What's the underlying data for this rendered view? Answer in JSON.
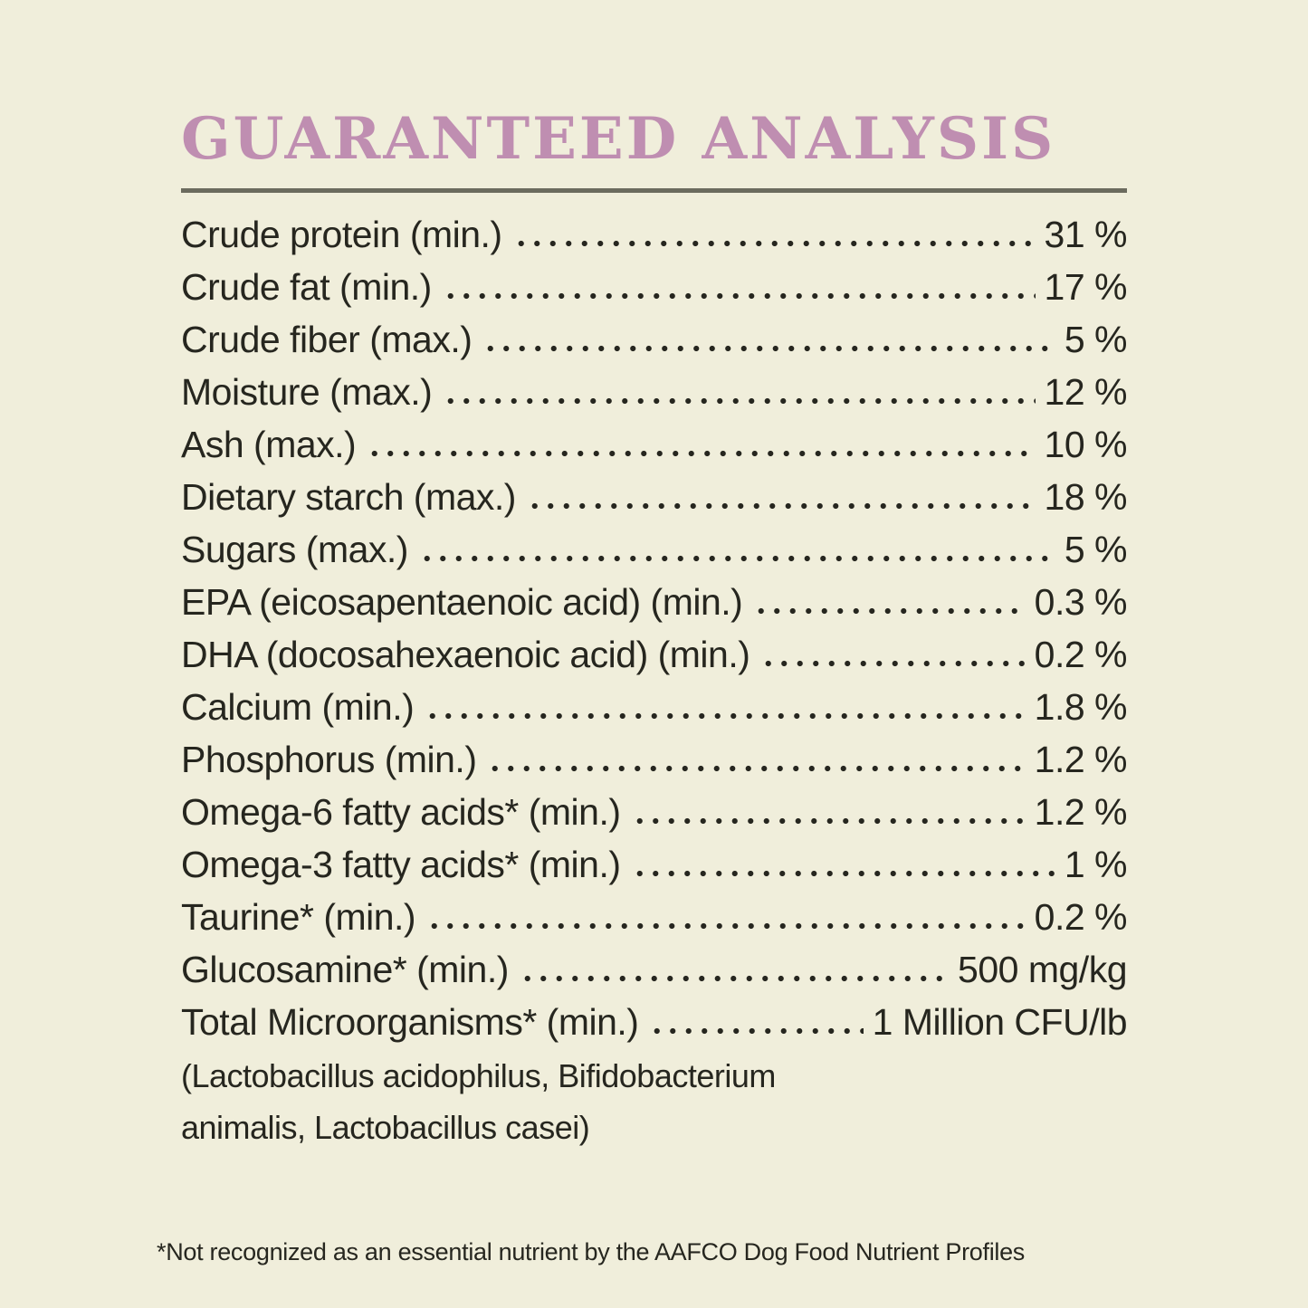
{
  "title": "GUARANTEED ANALYSIS",
  "colors": {
    "background": "#f0eedb",
    "title_pink": "#bf8eb1",
    "rule_gray": "#6b6b5e",
    "text": "#26261f"
  },
  "rows": [
    {
      "label": "Crude protein (min.)",
      "value": "31 %"
    },
    {
      "label": "Crude fat (min.)",
      "value": "17 %"
    },
    {
      "label": "Crude fiber (max.)",
      "value": "5 %"
    },
    {
      "label": "Moisture (max.)",
      "value": "12 %"
    },
    {
      "label": "Ash (max.)",
      "value": "10 %"
    },
    {
      "label": "Dietary starch (max.)",
      "value": "18 %"
    },
    {
      "label": "Sugars (max.)",
      "value": "5 %"
    },
    {
      "label": "EPA (eicosapentaenoic acid) (min.)",
      "value": "0.3 %"
    },
    {
      "label": "DHA (docosahexaenoic acid) (min.)",
      "value": "0.2 %"
    },
    {
      "label": "Calcium (min.)",
      "value": "1.8 %"
    },
    {
      "label": "Phosphorus (min.)",
      "value": "1.2 %"
    },
    {
      "label": "Omega-6 fatty acids* (min.)",
      "value": "1.2 %"
    },
    {
      "label": "Omega-3 fatty acids* (min.)",
      "value": "1 %"
    },
    {
      "label": "Taurine* (min.)",
      "value": "0.2 %"
    },
    {
      "label": "Glucosamine* (min.)",
      "value": "500 mg/kg"
    },
    {
      "label": "Total Microorganisms* (min.)",
      "value": "1 Million CFU/lb"
    }
  ],
  "subnote_lines": [
    "(Lactobacillus acidophilus, Bifidobacterium",
    "animalis, Lactobacillus casei)"
  ],
  "footnote": "*Not recognized as an essential nutrient by the AAFCO Dog Food Nutrient Profiles"
}
